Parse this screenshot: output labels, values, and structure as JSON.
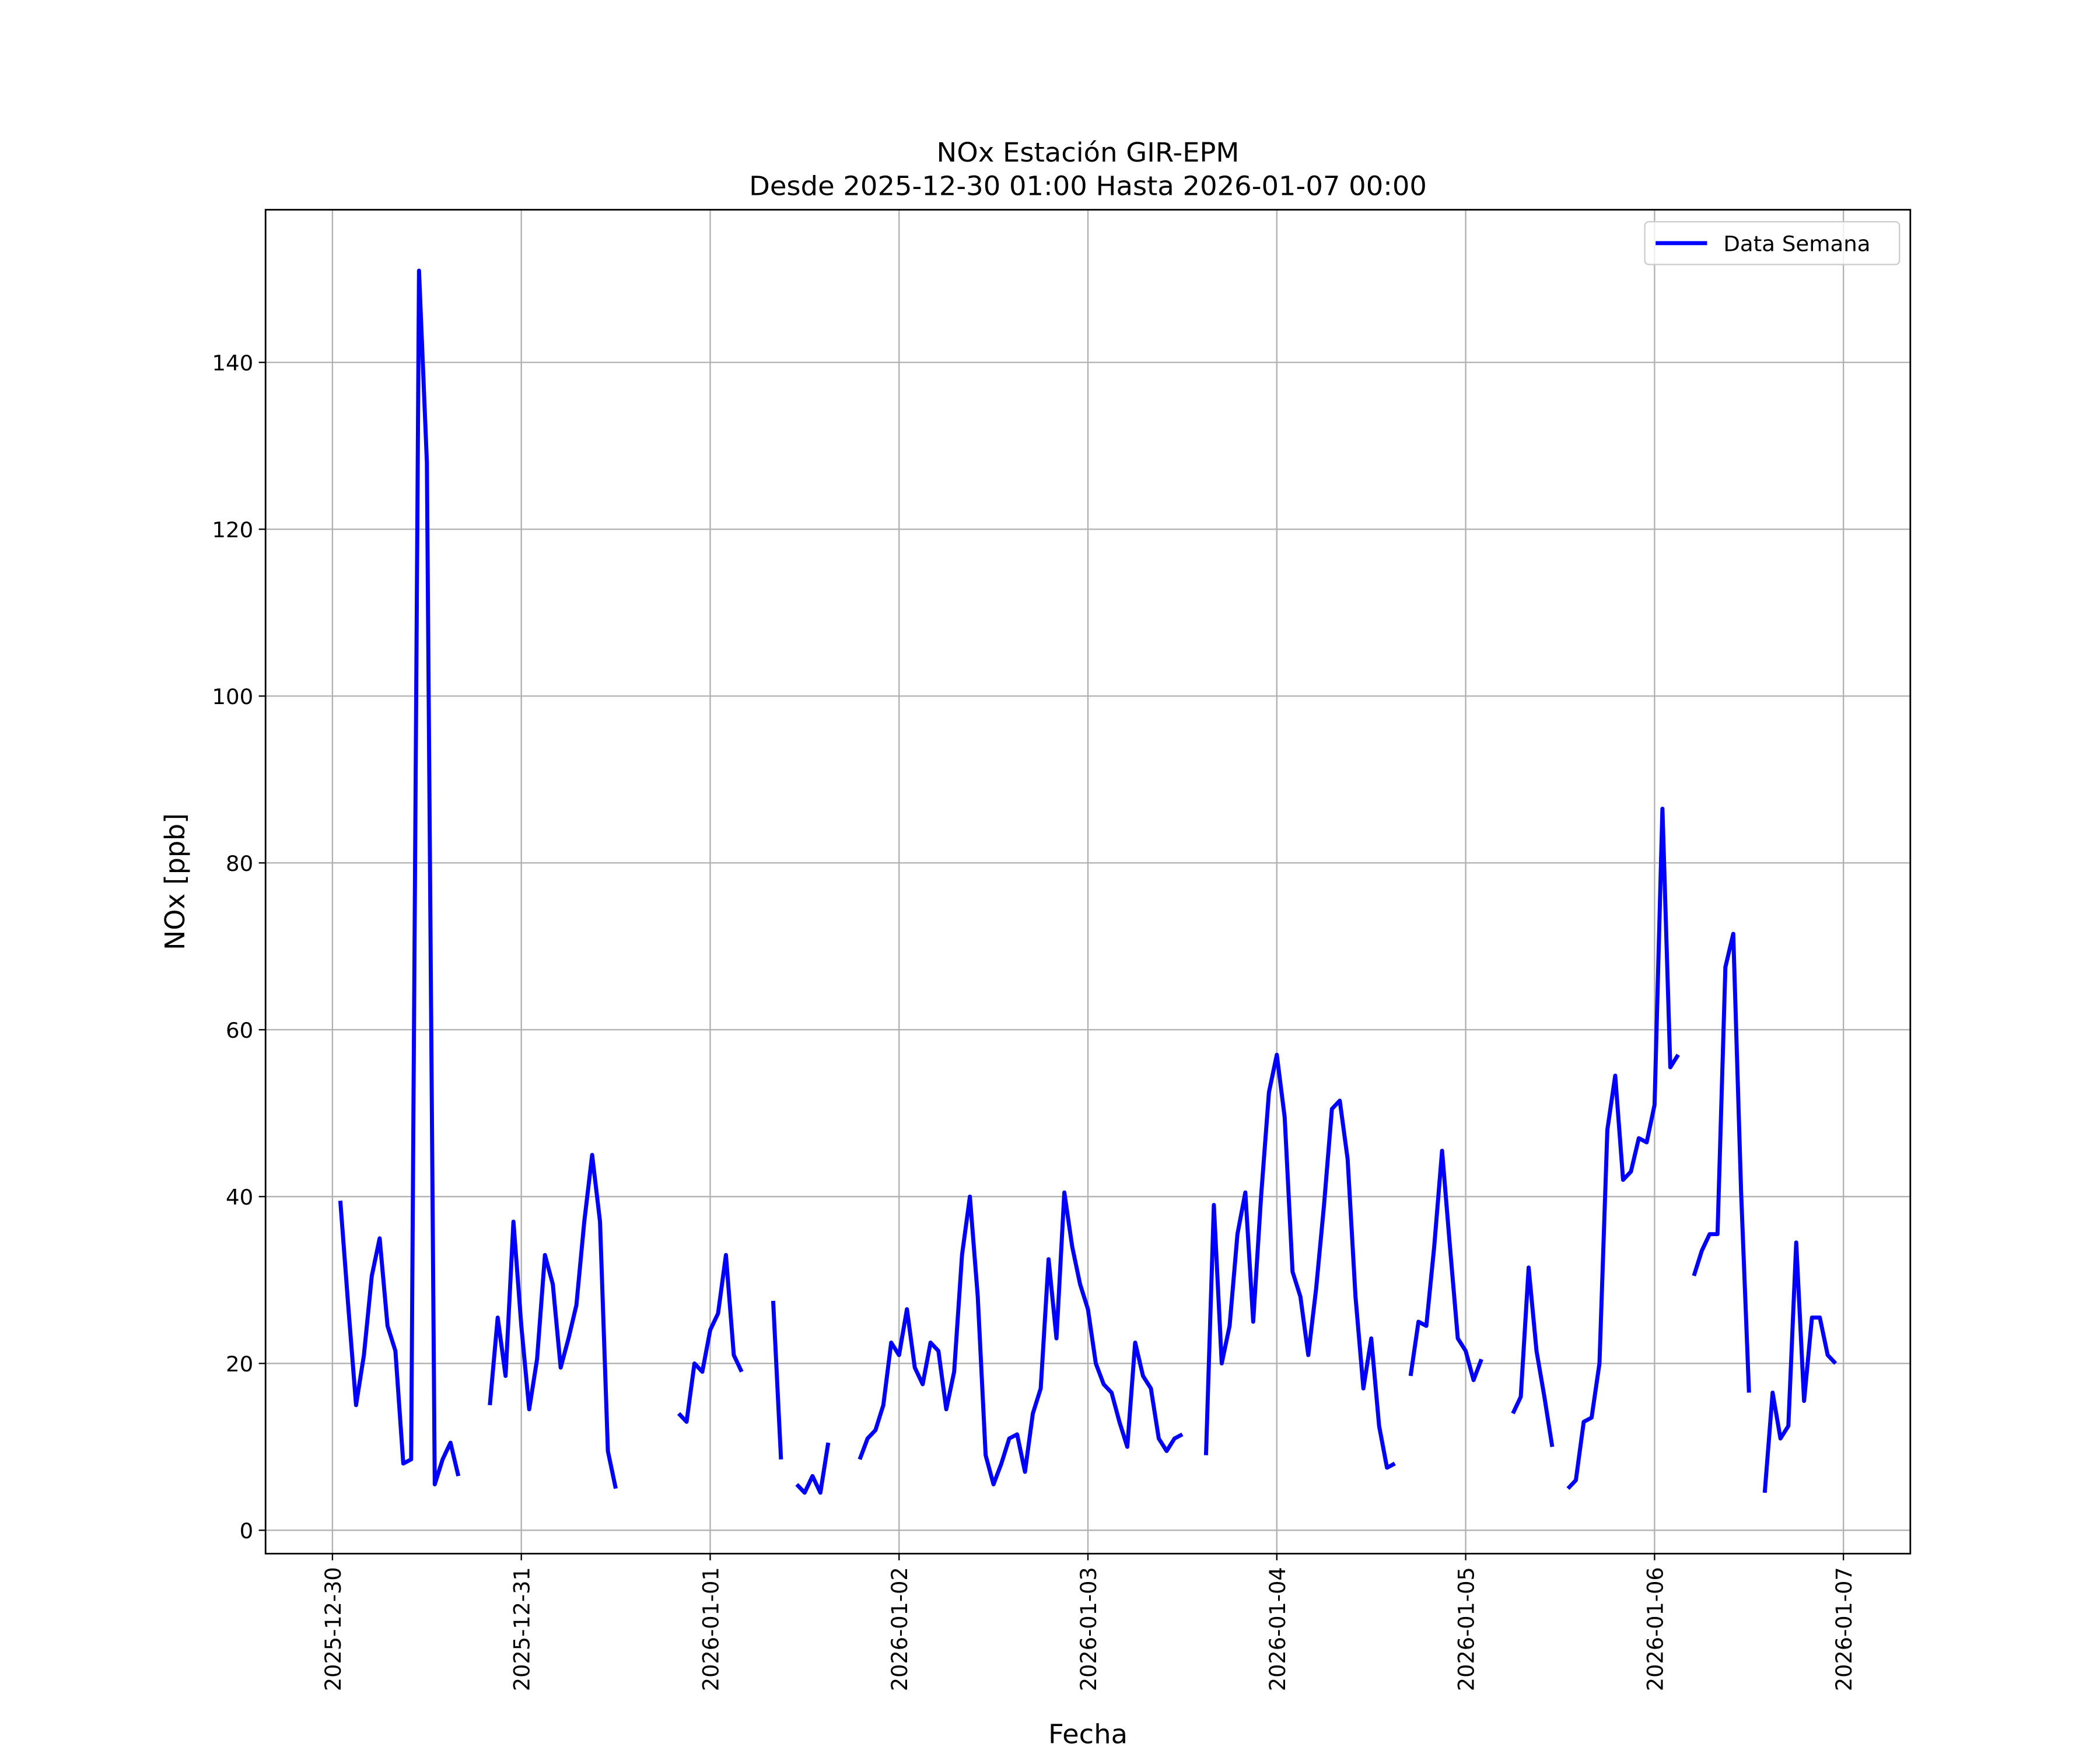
{
  "chart_data": {
    "type": "line",
    "title": "NOx Estación GIR-EPM",
    "subtitle": "Desde 2025-12-30 01:00 Hasta 2026-01-07 00:00",
    "x_label": "Fecha",
    "y_label": "NOx [ppb]",
    "legend": "upper right",
    "grid": true,
    "xlim": [
      "2025-12-29 15:30",
      "2026-01-07 08:30"
    ],
    "xticks": [
      "2025-12-30",
      "2025-12-31",
      "2026-01-01",
      "2026-01-02",
      "2026-01-03",
      "2026-01-04",
      "2026-01-05",
      "2026-01-06",
      "2026-01-07"
    ],
    "ylim": [
      -2.8,
      158.3
    ],
    "yticks": [
      0,
      20,
      40,
      60,
      80,
      100,
      120,
      140
    ],
    "x": [
      "2025-12-30 01:00",
      "2025-12-30 02:00",
      "2025-12-30 03:00",
      "2025-12-30 04:00",
      "2025-12-30 05:00",
      "2025-12-30 06:00",
      "2025-12-30 07:00",
      "2025-12-30 08:00",
      "2025-12-30 09:00",
      "2025-12-30 10:00",
      "2025-12-30 11:00",
      "2025-12-30 12:00",
      "2025-12-30 13:00",
      "2025-12-30 14:00",
      "2025-12-30 15:00",
      "2025-12-30 16:00",
      "2025-12-30 17:00",
      "2025-12-30 18:00",
      "2025-12-30 19:00",
      "2025-12-30 20:00",
      "2025-12-30 21:00",
      "2025-12-30 22:00",
      "2025-12-30 23:00",
      "2025-12-31 00:00",
      "2025-12-31 01:00",
      "2025-12-31 02:00",
      "2025-12-31 03:00",
      "2025-12-31 04:00",
      "2025-12-31 05:00",
      "2025-12-31 06:00",
      "2025-12-31 07:00",
      "2025-12-31 08:00",
      "2025-12-31 09:00",
      "2025-12-31 10:00",
      "2025-12-31 11:00",
      "2025-12-31 12:00",
      "2025-12-31 13:00",
      "2025-12-31 14:00",
      "2025-12-31 15:00",
      "2025-12-31 16:00",
      "2025-12-31 17:00",
      "2025-12-31 18:00",
      "2025-12-31 19:00",
      "2025-12-31 20:00",
      "2025-12-31 21:00",
      "2025-12-31 22:00",
      "2025-12-31 23:00",
      "2026-01-01 00:00",
      "2026-01-01 01:00",
      "2026-01-01 02:00",
      "2026-01-01 03:00",
      "2026-01-01 04:00",
      "2026-01-01 05:00",
      "2026-01-01 06:00",
      "2026-01-01 07:00",
      "2026-01-01 08:00",
      "2026-01-01 09:00",
      "2026-01-01 10:00",
      "2026-01-01 11:00",
      "2026-01-01 12:00",
      "2026-01-01 13:00",
      "2026-01-01 14:00",
      "2026-01-01 15:00",
      "2026-01-01 16:00",
      "2026-01-01 17:00",
      "2026-01-01 18:00",
      "2026-01-01 19:00",
      "2026-01-01 20:00",
      "2026-01-01 21:00",
      "2026-01-01 22:00",
      "2026-01-01 23:00",
      "2026-01-02 00:00",
      "2026-01-02 01:00",
      "2026-01-02 02:00",
      "2026-01-02 03:00",
      "2026-01-02 04:00",
      "2026-01-02 05:00",
      "2026-01-02 06:00",
      "2026-01-02 07:00",
      "2026-01-02 08:00",
      "2026-01-02 09:00",
      "2026-01-02 10:00",
      "2026-01-02 11:00",
      "2026-01-02 12:00",
      "2026-01-02 13:00",
      "2026-01-02 14:00",
      "2026-01-02 15:00",
      "2026-01-02 16:00",
      "2026-01-02 17:00",
      "2026-01-02 18:00",
      "2026-01-02 19:00",
      "2026-01-02 20:00",
      "2026-01-02 21:00",
      "2026-01-02 22:00",
      "2026-01-02 23:00",
      "2026-01-03 00:00",
      "2026-01-03 01:00",
      "2026-01-03 02:00",
      "2026-01-03 03:00",
      "2026-01-03 04:00",
      "2026-01-03 05:00",
      "2026-01-03 06:00",
      "2026-01-03 07:00",
      "2026-01-03 08:00",
      "2026-01-03 09:00",
      "2026-01-03 10:00",
      "2026-01-03 11:00",
      "2026-01-03 12:00",
      "2026-01-03 13:00",
      "2026-01-03 14:00",
      "2026-01-03 15:00",
      "2026-01-03 16:00",
      "2026-01-03 17:00",
      "2026-01-03 18:00",
      "2026-01-03 19:00",
      "2026-01-03 20:00",
      "2026-01-03 21:00",
      "2026-01-03 22:00",
      "2026-01-03 23:00",
      "2026-01-04 00:00",
      "2026-01-04 01:00",
      "2026-01-04 02:00",
      "2026-01-04 03:00",
      "2026-01-04 04:00",
      "2026-01-04 05:00",
      "2026-01-04 06:00",
      "2026-01-04 07:00",
      "2026-01-04 08:00",
      "2026-01-04 09:00",
      "2026-01-04 10:00",
      "2026-01-04 11:00",
      "2026-01-04 12:00",
      "2026-01-04 13:00",
      "2026-01-04 14:00",
      "2026-01-04 15:00",
      "2026-01-04 16:00",
      "2026-01-04 17:00",
      "2026-01-04 18:00",
      "2026-01-04 19:00",
      "2026-01-04 20:00",
      "2026-01-04 21:00",
      "2026-01-04 22:00",
      "2026-01-04 23:00",
      "2026-01-05 00:00",
      "2026-01-05 01:00",
      "2026-01-05 02:00",
      "2026-01-05 03:00",
      "2026-01-05 04:00",
      "2026-01-05 05:00",
      "2026-01-05 06:00",
      "2026-01-05 07:00",
      "2026-01-05 08:00",
      "2026-01-05 09:00",
      "2026-01-05 10:00",
      "2026-01-05 11:00",
      "2026-01-05 12:00",
      "2026-01-05 13:00",
      "2026-01-05 14:00",
      "2026-01-05 15:00",
      "2026-01-05 16:00",
      "2026-01-05 17:00",
      "2026-01-05 18:00",
      "2026-01-05 19:00",
      "2026-01-05 20:00",
      "2026-01-05 21:00",
      "2026-01-05 22:00",
      "2026-01-05 23:00",
      "2026-01-06 00:00",
      "2026-01-06 01:00",
      "2026-01-06 02:00",
      "2026-01-06 03:00",
      "2026-01-06 04:00",
      "2026-01-06 05:00",
      "2026-01-06 06:00",
      "2026-01-06 07:00",
      "2026-01-06 08:00",
      "2026-01-06 09:00",
      "2026-01-06 10:00",
      "2026-01-06 11:00",
      "2026-01-06 12:00",
      "2026-01-06 13:00",
      "2026-01-06 14:00",
      "2026-01-06 15:00",
      "2026-01-06 16:00",
      "2026-01-06 17:00",
      "2026-01-06 18:00",
      "2026-01-06 19:00",
      "2026-01-06 20:00",
      "2026-01-06 21:00",
      "2026-01-06 22:00",
      "2026-01-06 23:00"
    ],
    "series": [
      {
        "name": "Data Semana",
        "color": "#0000ff",
        "values": [
          39.5,
          27,
          15,
          21,
          30.5,
          35,
          24.5,
          21.5,
          8,
          8.5,
          151,
          128,
          5.5,
          8.5,
          10.5,
          6.5,
          null,
          null,
          null,
          15,
          25.5,
          18.5,
          37,
          24.5,
          14.5,
          20.5,
          33,
          29.5,
          19.5,
          23,
          27,
          37,
          45,
          37,
          9.5,
          5,
          null,
          null,
          null,
          null,
          null,
          null,
          null,
          14,
          13,
          20,
          19,
          24,
          26,
          33,
          21,
          19,
          null,
          null,
          null,
          27.5,
          8.5,
          null,
          5.5,
          4.5,
          6.5,
          4.5,
          10.5,
          null,
          null,
          null,
          8.5,
          11,
          12,
          15,
          22.5,
          21,
          26.5,
          19.5,
          17.5,
          22.5,
          21.5,
          14.5,
          19,
          33,
          40,
          28,
          9,
          5.5,
          8,
          11,
          11.5,
          7,
          14,
          17,
          32.5,
          23,
          40.5,
          34,
          29.5,
          26.5,
          20,
          17.5,
          16.5,
          13,
          10,
          22.5,
          18.5,
          17,
          11,
          9.5,
          11,
          11.5,
          null,
          null,
          9,
          39,
          20,
          24.5,
          35.5,
          40.5,
          25,
          40,
          52.5,
          57,
          49.5,
          31,
          28,
          21,
          29,
          39,
          50.5,
          51.5,
          44.5,
          28,
          17,
          23,
          12.5,
          7.5,
          8,
          null,
          18.5,
          25,
          24.5,
          34,
          45.5,
          34,
          23,
          21.5,
          18,
          20.5,
          null,
          null,
          null,
          14,
          16,
          31.5,
          21.5,
          16,
          10,
          null,
          5,
          6,
          13,
          13.5,
          20,
          48,
          54.5,
          42,
          43,
          47,
          46.5,
          51,
          86.5,
          55.5,
          57,
          null,
          30.5,
          33.5,
          35.5,
          35.5,
          67.5,
          71.5,
          40.5,
          16.5,
          null,
          4.5,
          16.5,
          11,
          12.5,
          34.5,
          15.5,
          25.5,
          25.5,
          21,
          20
        ]
      }
    ]
  }
}
